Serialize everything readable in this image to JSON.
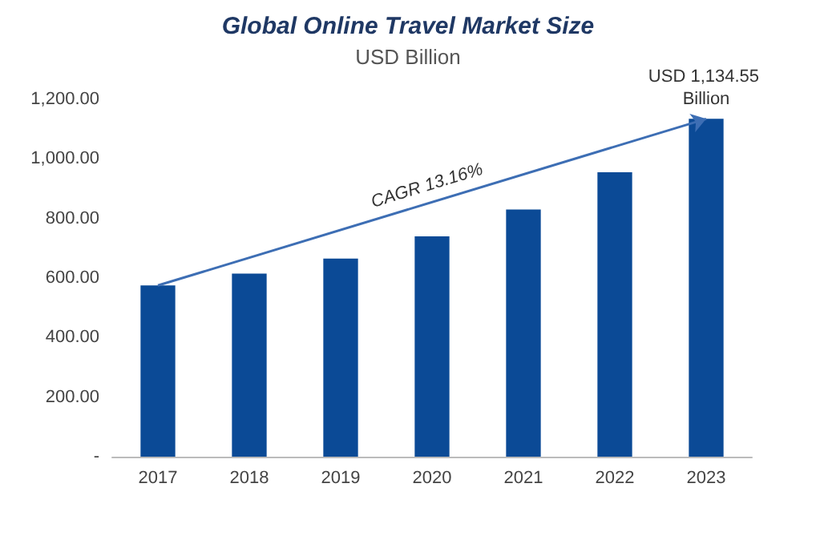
{
  "chart_data": {
    "type": "bar",
    "title": "Global Online Travel Market Size",
    "subtitle": "USD Billion",
    "categories": [
      "2017",
      "2018",
      "2019",
      "2020",
      "2021",
      "2022",
      "2023"
    ],
    "values": [
      575,
      615,
      665,
      740,
      830,
      955,
      1134.55
    ],
    "value_labels": [
      null,
      null,
      null,
      null,
      null,
      null,
      "USD 1,134.55 Billion"
    ],
    "color": "#0b4a96",
    "ylim": [
      0,
      1200
    ],
    "yticks": [
      {
        "value": 0,
        "label": "-"
      },
      {
        "value": 200,
        "label": "200.00"
      },
      {
        "value": 400,
        "label": "400.00"
      },
      {
        "value": 600,
        "label": "600.00"
      },
      {
        "value": 800,
        "label": "800.00"
      },
      {
        "value": 1000,
        "label": "1,000.00"
      },
      {
        "value": 1200,
        "label": "1,200.00"
      }
    ],
    "annotations": [
      "CAGR 13.16%"
    ],
    "grid": false
  }
}
